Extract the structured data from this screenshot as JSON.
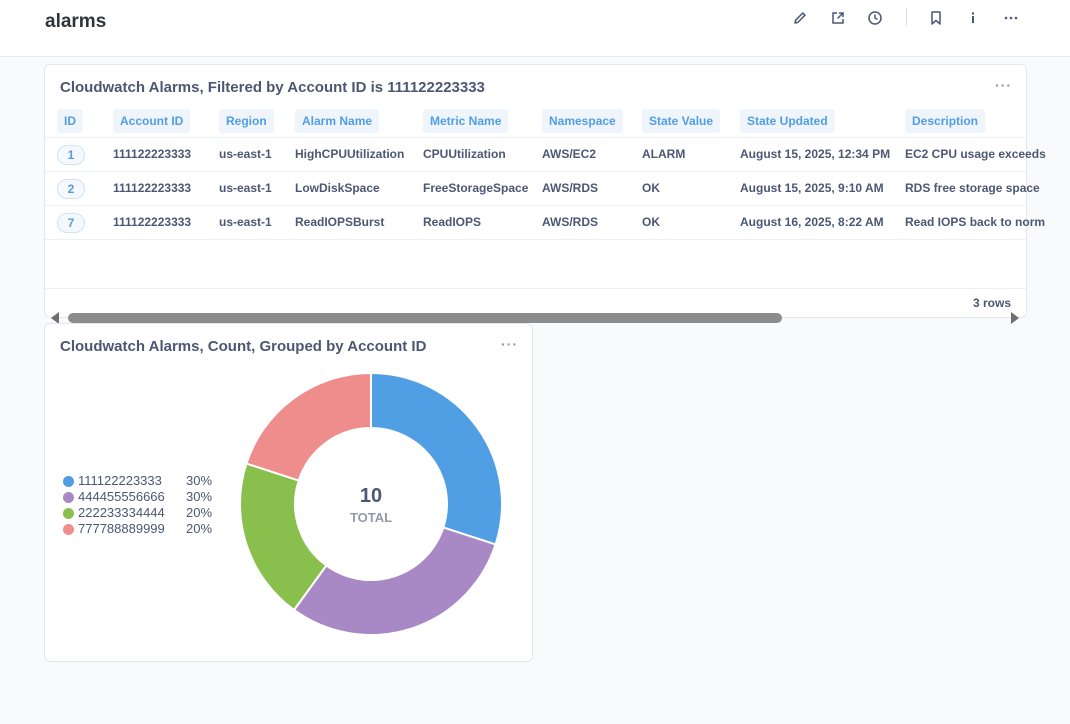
{
  "page": {
    "title": "alarms"
  },
  "toolbar": {
    "icons": [
      "pencil-icon",
      "external-link-icon",
      "clock-icon",
      "bookmark-icon",
      "info-icon",
      "more-icon"
    ]
  },
  "table_card": {
    "title": "Cloudwatch Alarms, Filtered by Account ID is 111122223333",
    "menu": "···",
    "columns": [
      "ID",
      "Account ID",
      "Region",
      "Alarm Name",
      "Metric Name",
      "Namespace",
      "State Value",
      "State Updated",
      "Description"
    ],
    "rows": [
      {
        "id": "1",
        "account_id": "111122223333",
        "region": "us-east-1",
        "alarm_name": "HighCPUUtilization",
        "metric_name": "CPUUtilization",
        "namespace": "AWS/EC2",
        "state_value": "ALARM",
        "state_updated": "August 15, 2025, 12:34 PM",
        "description": "EC2 CPU usage exceeds"
      },
      {
        "id": "2",
        "account_id": "111122223333",
        "region": "us-east-1",
        "alarm_name": "LowDiskSpace",
        "metric_name": "FreeStorageSpace",
        "namespace": "AWS/RDS",
        "state_value": "OK",
        "state_updated": "August 15, 2025, 9:10 AM",
        "description": "RDS free storage space"
      },
      {
        "id": "7",
        "account_id": "111122223333",
        "region": "us-east-1",
        "alarm_name": "ReadIOPSBurst",
        "metric_name": "ReadIOPS",
        "namespace": "AWS/RDS",
        "state_value": "OK",
        "state_updated": "August 16, 2025, 8:22 AM",
        "description": "Read IOPS back to norm"
      }
    ],
    "row_count": "3 rows"
  },
  "chart_card": {
    "title": "Cloudwatch Alarms, Count, Grouped by Account ID",
    "menu": "···",
    "total_value": "10",
    "total_label": "TOTAL",
    "legend": [
      {
        "label": "111122223333",
        "pct": "30%"
      },
      {
        "label": "444455556666",
        "pct": "30%"
      },
      {
        "label": "222233334444",
        "pct": "20%"
      },
      {
        "label": "777788889999",
        "pct": "20%"
      }
    ]
  },
  "chart_data": {
    "type": "pie",
    "title": "Cloudwatch Alarms, Count, Grouped by Account ID",
    "categories": [
      "111122223333",
      "444455556666",
      "222233334444",
      "777788889999"
    ],
    "values": [
      3,
      3,
      2,
      2
    ],
    "colors": [
      "#509ee3",
      "#a989c5",
      "#88bf4d",
      "#ef8c8c"
    ],
    "total": 10,
    "legend": "left"
  }
}
